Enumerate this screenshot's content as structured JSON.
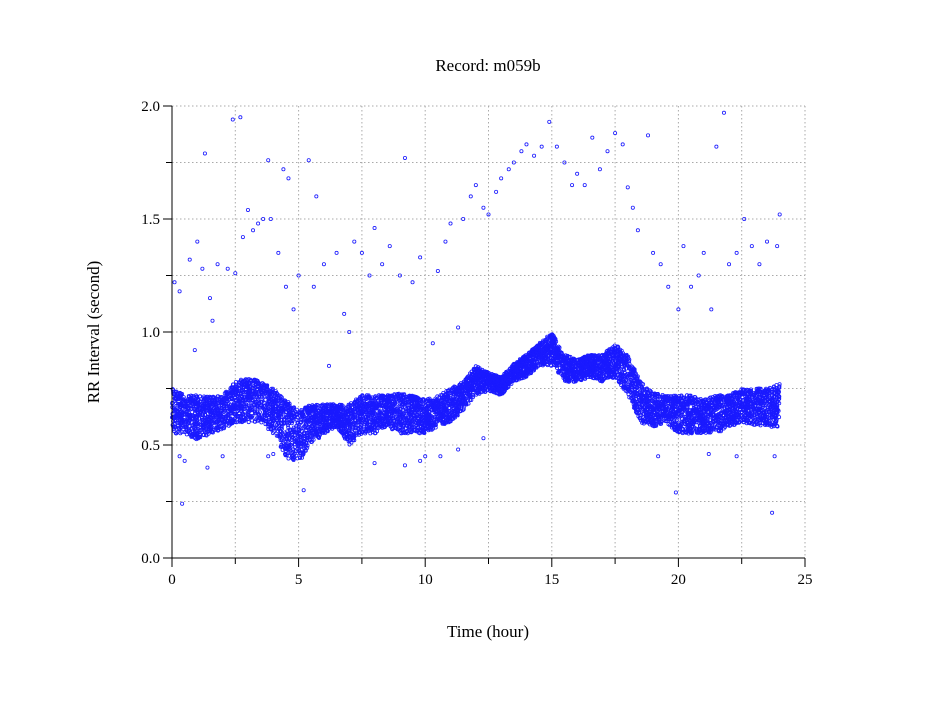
{
  "chart_data": {
    "type": "scatter",
    "title": "Record:  m059b",
    "xlabel": "Time (hour)",
    "ylabel": "RR Interval (second)",
    "xlim": [
      0,
      25
    ],
    "ylim": [
      0,
      2.0
    ],
    "x_ticks": [
      "0",
      "5",
      "10",
      "15",
      "20",
      "25"
    ],
    "y_ticks": [
      "0.0",
      "0.5",
      "1.0",
      "1.5",
      "2.0"
    ],
    "grid": true,
    "marker": "open-circle",
    "marker_color": "#1a1aff",
    "dense_band": {
      "columns": [
        "hour",
        "rr_low",
        "rr_high"
      ],
      "rows": [
        [
          0,
          0.55,
          0.75
        ],
        [
          0.5,
          0.55,
          0.72
        ],
        [
          1,
          0.52,
          0.72
        ],
        [
          1.5,
          0.55,
          0.72
        ],
        [
          2,
          0.57,
          0.72
        ],
        [
          2.5,
          0.6,
          0.78
        ],
        [
          3,
          0.6,
          0.8
        ],
        [
          3.5,
          0.6,
          0.78
        ],
        [
          4,
          0.55,
          0.75
        ],
        [
          4.5,
          0.45,
          0.7
        ],
        [
          5,
          0.42,
          0.65
        ],
        [
          5.5,
          0.5,
          0.68
        ],
        [
          6,
          0.55,
          0.68
        ],
        [
          6.5,
          0.58,
          0.68
        ],
        [
          7,
          0.5,
          0.68
        ],
        [
          7.5,
          0.55,
          0.72
        ],
        [
          8,
          0.55,
          0.72
        ],
        [
          8.5,
          0.58,
          0.72
        ],
        [
          9,
          0.55,
          0.73
        ],
        [
          9.5,
          0.55,
          0.72
        ],
        [
          10,
          0.55,
          0.7
        ],
        [
          10.5,
          0.58,
          0.72
        ],
        [
          11,
          0.6,
          0.75
        ],
        [
          11.5,
          0.65,
          0.78
        ],
        [
          12,
          0.72,
          0.85
        ],
        [
          12.5,
          0.74,
          0.82
        ],
        [
          13,
          0.72,
          0.8
        ],
        [
          13.5,
          0.78,
          0.86
        ],
        [
          14,
          0.8,
          0.9
        ],
        [
          14.5,
          0.85,
          0.95
        ],
        [
          15,
          0.85,
          1.0
        ],
        [
          15.5,
          0.78,
          0.9
        ],
        [
          16,
          0.78,
          0.88
        ],
        [
          16.5,
          0.8,
          0.9
        ],
        [
          17,
          0.78,
          0.9
        ],
        [
          17.5,
          0.8,
          0.95
        ],
        [
          18,
          0.72,
          0.9
        ],
        [
          18.5,
          0.6,
          0.78
        ],
        [
          19,
          0.58,
          0.73
        ],
        [
          19.5,
          0.6,
          0.72
        ],
        [
          20,
          0.55,
          0.72
        ],
        [
          20.5,
          0.55,
          0.72
        ],
        [
          21,
          0.55,
          0.7
        ],
        [
          21.5,
          0.55,
          0.72
        ],
        [
          22,
          0.58,
          0.72
        ],
        [
          22.5,
          0.6,
          0.75
        ],
        [
          23,
          0.58,
          0.75
        ],
        [
          23.5,
          0.58,
          0.75
        ],
        [
          24,
          0.58,
          0.77
        ]
      ]
    },
    "outliers": [
      [
        0.1,
        1.22
      ],
      [
        0.3,
        1.18
      ],
      [
        0.4,
        0.24
      ],
      [
        0.5,
        0.43
      ],
      [
        0.7,
        1.32
      ],
      [
        0.9,
        0.92
      ],
      [
        1,
        1.4
      ],
      [
        1.2,
        1.28
      ],
      [
        1.3,
        1.79
      ],
      [
        1.4,
        0.4
      ],
      [
        1.5,
        1.15
      ],
      [
        1.6,
        1.05
      ],
      [
        1.8,
        1.3
      ],
      [
        2.2,
        1.28
      ],
      [
        2.4,
        1.94
      ],
      [
        2.5,
        1.26
      ],
      [
        2.7,
        1.95
      ],
      [
        2.8,
        1.42
      ],
      [
        3,
        1.54
      ],
      [
        3.2,
        1.45
      ],
      [
        3.4,
        1.48
      ],
      [
        3.6,
        1.5
      ],
      [
        3.8,
        1.76
      ],
      [
        3.9,
        1.5
      ],
      [
        4,
        0.46
      ],
      [
        4.2,
        1.35
      ],
      [
        4.4,
        1.72
      ],
      [
        4.5,
        1.2
      ],
      [
        4.6,
        1.68
      ],
      [
        4.8,
        1.1
      ],
      [
        5,
        1.25
      ],
      [
        5.2,
        0.3
      ],
      [
        5.4,
        1.76
      ],
      [
        5.6,
        1.2
      ],
      [
        5.7,
        1.6
      ],
      [
        6,
        1.3
      ],
      [
        6.2,
        0.85
      ],
      [
        6.5,
        1.35
      ],
      [
        6.8,
        1.08
      ],
      [
        7,
        1.0
      ],
      [
        7.2,
        1.4
      ],
      [
        7.5,
        1.35
      ],
      [
        7.8,
        1.25
      ],
      [
        8,
        1.46
      ],
      [
        8.3,
        1.3
      ],
      [
        8.6,
        1.38
      ],
      [
        9,
        1.25
      ],
      [
        9.2,
        1.77
      ],
      [
        9.5,
        1.22
      ],
      [
        9.8,
        1.33
      ],
      [
        10,
        0.45
      ],
      [
        10.3,
        0.95
      ],
      [
        10.5,
        1.27
      ],
      [
        10.8,
        1.4
      ],
      [
        11,
        1.48
      ],
      [
        11.3,
        1.02
      ],
      [
        11.5,
        1.5
      ],
      [
        11.8,
        1.6
      ],
      [
        12,
        1.65
      ],
      [
        12.3,
        1.55
      ],
      [
        12.5,
        1.52
      ],
      [
        12.8,
        1.62
      ],
      [
        13,
        1.68
      ],
      [
        13.3,
        1.72
      ],
      [
        13.5,
        1.75
      ],
      [
        13.8,
        1.8
      ],
      [
        14,
        1.83
      ],
      [
        14.3,
        1.78
      ],
      [
        14.6,
        1.82
      ],
      [
        14.9,
        1.93
      ],
      [
        15.2,
        1.82
      ],
      [
        15.5,
        1.75
      ],
      [
        15.8,
        1.65
      ],
      [
        16,
        1.7
      ],
      [
        16.3,
        1.65
      ],
      [
        16.6,
        1.86
      ],
      [
        16.9,
        1.72
      ],
      [
        17.2,
        1.8
      ],
      [
        17.5,
        1.88
      ],
      [
        17.8,
        1.83
      ],
      [
        18,
        1.64
      ],
      [
        18.2,
        1.55
      ],
      [
        18.4,
        1.45
      ],
      [
        18.8,
        1.87
      ],
      [
        19,
        1.35
      ],
      [
        19.3,
        1.3
      ],
      [
        19.6,
        1.2
      ],
      [
        20,
        1.1
      ],
      [
        20.2,
        1.38
      ],
      [
        20.5,
        1.2
      ],
      [
        20.8,
        1.25
      ],
      [
        21,
        1.35
      ],
      [
        21.3,
        1.1
      ],
      [
        21.5,
        1.82
      ],
      [
        21.8,
        1.97
      ],
      [
        22,
        1.3
      ],
      [
        22.3,
        1.35
      ],
      [
        22.6,
        1.5
      ],
      [
        22.9,
        1.38
      ],
      [
        23.2,
        1.3
      ],
      [
        23.5,
        1.4
      ],
      [
        23.7,
        0.2
      ],
      [
        23.9,
        1.38
      ],
      [
        24,
        1.52
      ],
      [
        0.3,
        0.45
      ],
      [
        2,
        0.45
      ],
      [
        3.8,
        0.45
      ],
      [
        4.6,
        0.44
      ],
      [
        8,
        0.42
      ],
      [
        9.2,
        0.41
      ],
      [
        9.8,
        0.43
      ],
      [
        10.6,
        0.45
      ],
      [
        11.3,
        0.48
      ],
      [
        19.2,
        0.45
      ],
      [
        19.9,
        0.29
      ],
      [
        21.2,
        0.46
      ],
      [
        22.3,
        0.45
      ],
      [
        23.8,
        0.45
      ],
      [
        12.3,
        0.53
      ]
    ]
  }
}
